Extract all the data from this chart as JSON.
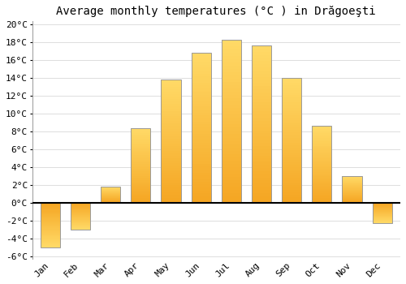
{
  "title": "Average monthly temperatures (°C ) in Drăgoeşti",
  "months": [
    "Jan",
    "Feb",
    "Mar",
    "Apr",
    "May",
    "Jun",
    "Jul",
    "Aug",
    "Sep",
    "Oct",
    "Nov",
    "Dec"
  ],
  "values": [
    -5.0,
    -3.0,
    1.8,
    8.3,
    13.8,
    16.8,
    18.2,
    17.6,
    14.0,
    8.6,
    3.0,
    -2.3
  ],
  "bar_color_bottom": "#F5A623",
  "bar_color_top": "#FFD966",
  "bar_edge_color": "#999999",
  "background_color": "#FFFFFF",
  "grid_color": "#DDDDDD",
  "ylim": [
    -6,
    20
  ],
  "yticks": [
    -6,
    -4,
    -2,
    0,
    2,
    4,
    6,
    8,
    10,
    12,
    14,
    16,
    18,
    20
  ],
  "title_fontsize": 10,
  "tick_fontsize": 8,
  "font_family": "monospace"
}
